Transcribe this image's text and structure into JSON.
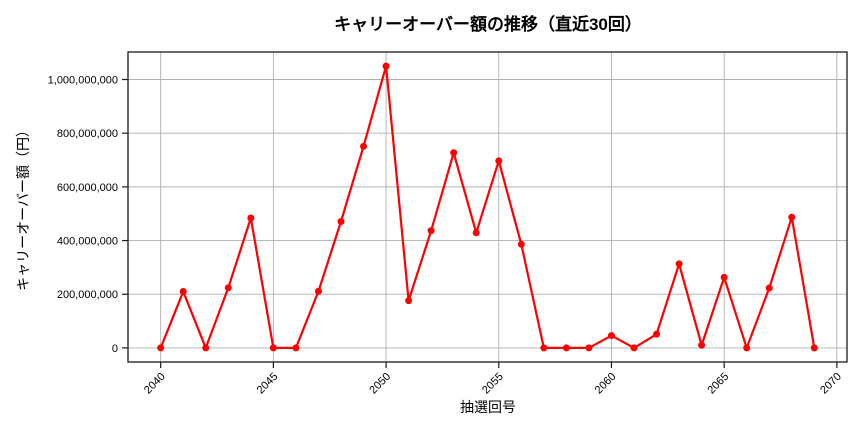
{
  "chart_data": {
    "type": "line",
    "title": "キャリーオーバー額の推移（直近30回）",
    "xlabel": "抽選回号",
    "ylabel": "キャリーオーバー額（円）",
    "x": [
      2040,
      2041,
      2042,
      2043,
      2044,
      2045,
      2046,
      2047,
      2048,
      2049,
      2050,
      2051,
      2052,
      2053,
      2054,
      2055,
      2056,
      2057,
      2058,
      2059,
      2060,
      2061,
      2062,
      2063,
      2064,
      2065,
      2066,
      2067,
      2068,
      2069
    ],
    "values": [
      0,
      210000000,
      0,
      224000000,
      484000000,
      0,
      0,
      211000000,
      471000000,
      751000000,
      1050000000,
      176000000,
      437000000,
      727000000,
      429000000,
      697000000,
      386000000,
      0,
      0,
      0,
      46000000,
      0,
      51000000,
      313000000,
      10000000,
      263000000,
      0,
      223000000,
      487000000,
      0
    ],
    "line_color": "#ff0000",
    "marker": "circle",
    "grid": true,
    "legend": "none",
    "xlim": [
      2038.55,
      2070.45
    ],
    "ylim": [
      -52500000,
      1102500000
    ],
    "x_ticks": [
      2040,
      2045,
      2050,
      2055,
      2060,
      2065,
      2070
    ],
    "x_tick_labels": [
      "2040",
      "2045",
      "2050",
      "2055",
      "2060",
      "2065",
      "2070"
    ],
    "y_ticks": [
      0,
      200000000,
      400000000,
      600000000,
      800000000,
      1000000000
    ],
    "y_tick_labels": [
      "0",
      "200,000,000",
      "400,000,000",
      "600,000,000",
      "800,000,000",
      "1,000,000,000"
    ]
  }
}
